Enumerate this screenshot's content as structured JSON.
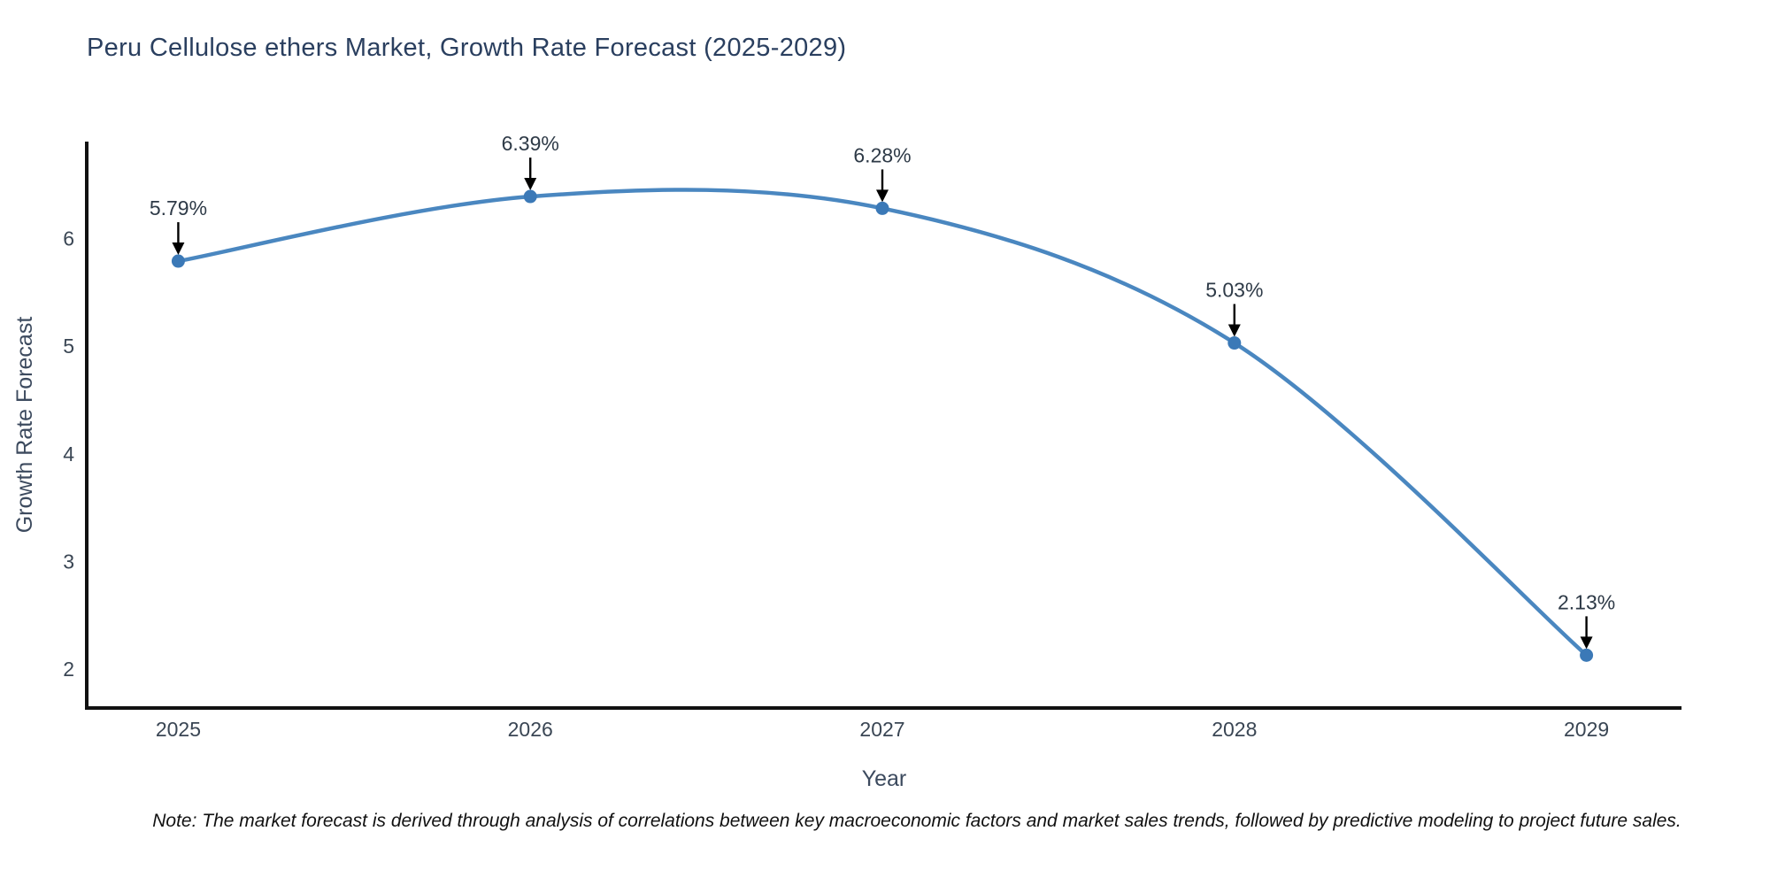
{
  "note": "Note: The market forecast is derived through analysis of correlations between key macroeconomic factors and market sales trends, followed by predictive modeling to project future sales.",
  "chart_data": {
    "type": "line",
    "title": "Peru Cellulose ethers Market, Growth Rate Forecast (2025-2029)",
    "xlabel": "Year",
    "ylabel": "Growth Rate Forecast",
    "x": [
      2025,
      2026,
      2027,
      2028,
      2029
    ],
    "values": [
      5.79,
      6.39,
      6.28,
      5.03,
      2.13
    ],
    "point_labels": [
      "5.79%",
      "6.39%",
      "6.28%",
      "5.03%",
      "2.13%"
    ],
    "yticks": [
      2,
      3,
      4,
      5,
      6
    ],
    "ylim": [
      1.64,
      6.9
    ],
    "xlim": [
      2024.74,
      2029.27
    ],
    "line_shape": "spline",
    "grid": false,
    "legend_position": "none",
    "colors": {
      "line": "#4a87c0",
      "marker": "#3b79b7",
      "axis": "#111111",
      "title_text": "#2a3f5f",
      "tick_text": "#3a4654",
      "axis_label_text": "#3c4a5e",
      "annotation_text": "#2e3a47",
      "arrow": "#000000",
      "background": "#ffffff"
    }
  }
}
